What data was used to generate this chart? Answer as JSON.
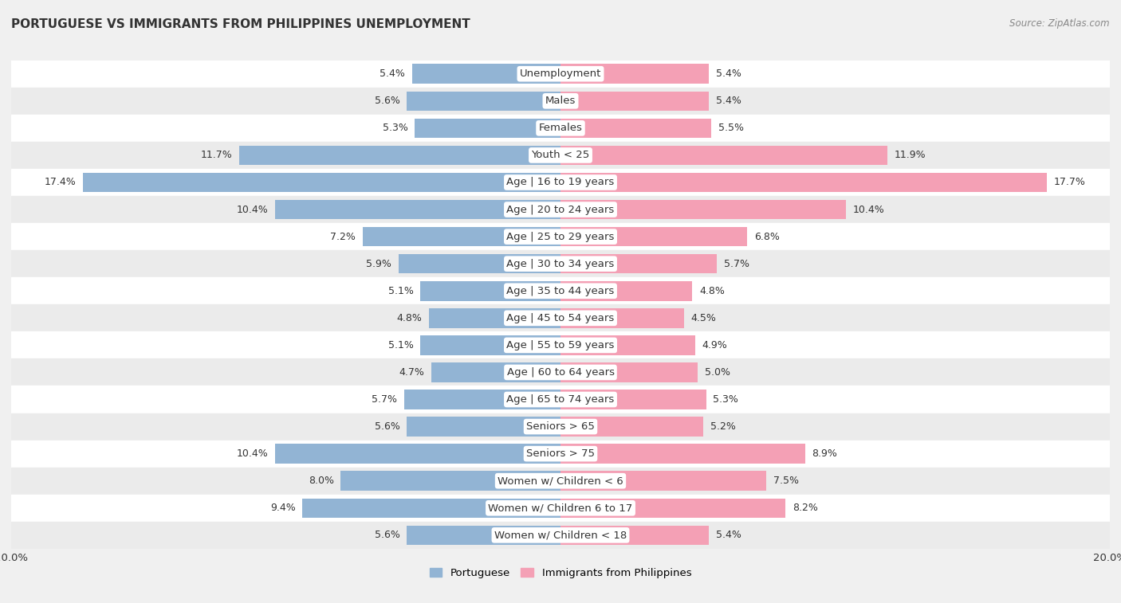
{
  "title": "PORTUGUESE VS IMMIGRANTS FROM PHILIPPINES UNEMPLOYMENT",
  "source": "Source: ZipAtlas.com",
  "categories": [
    "Unemployment",
    "Males",
    "Females",
    "Youth < 25",
    "Age | 16 to 19 years",
    "Age | 20 to 24 years",
    "Age | 25 to 29 years",
    "Age | 30 to 34 years",
    "Age | 35 to 44 years",
    "Age | 45 to 54 years",
    "Age | 55 to 59 years",
    "Age | 60 to 64 years",
    "Age | 65 to 74 years",
    "Seniors > 65",
    "Seniors > 75",
    "Women w/ Children < 6",
    "Women w/ Children 6 to 17",
    "Women w/ Children < 18"
  ],
  "portuguese": [
    5.4,
    5.6,
    5.3,
    11.7,
    17.4,
    10.4,
    7.2,
    5.9,
    5.1,
    4.8,
    5.1,
    4.7,
    5.7,
    5.6,
    10.4,
    8.0,
    9.4,
    5.6
  ],
  "philippines": [
    5.4,
    5.4,
    5.5,
    11.9,
    17.7,
    10.4,
    6.8,
    5.7,
    4.8,
    4.5,
    4.9,
    5.0,
    5.3,
    5.2,
    8.9,
    7.5,
    8.2,
    5.4
  ],
  "portuguese_color": "#92b4d4",
  "philippines_color": "#f4a0b5",
  "row_colors": [
    "#ffffff",
    "#ebebeb"
  ],
  "background_color": "#f0f0f0",
  "max_val": 20.0,
  "bar_height": 0.72,
  "label_fontsize": 9.5,
  "title_fontsize": 11,
  "source_fontsize": 8.5,
  "value_fontsize": 9,
  "legend_labels": [
    "Portuguese",
    "Immigrants from Philippines"
  ]
}
